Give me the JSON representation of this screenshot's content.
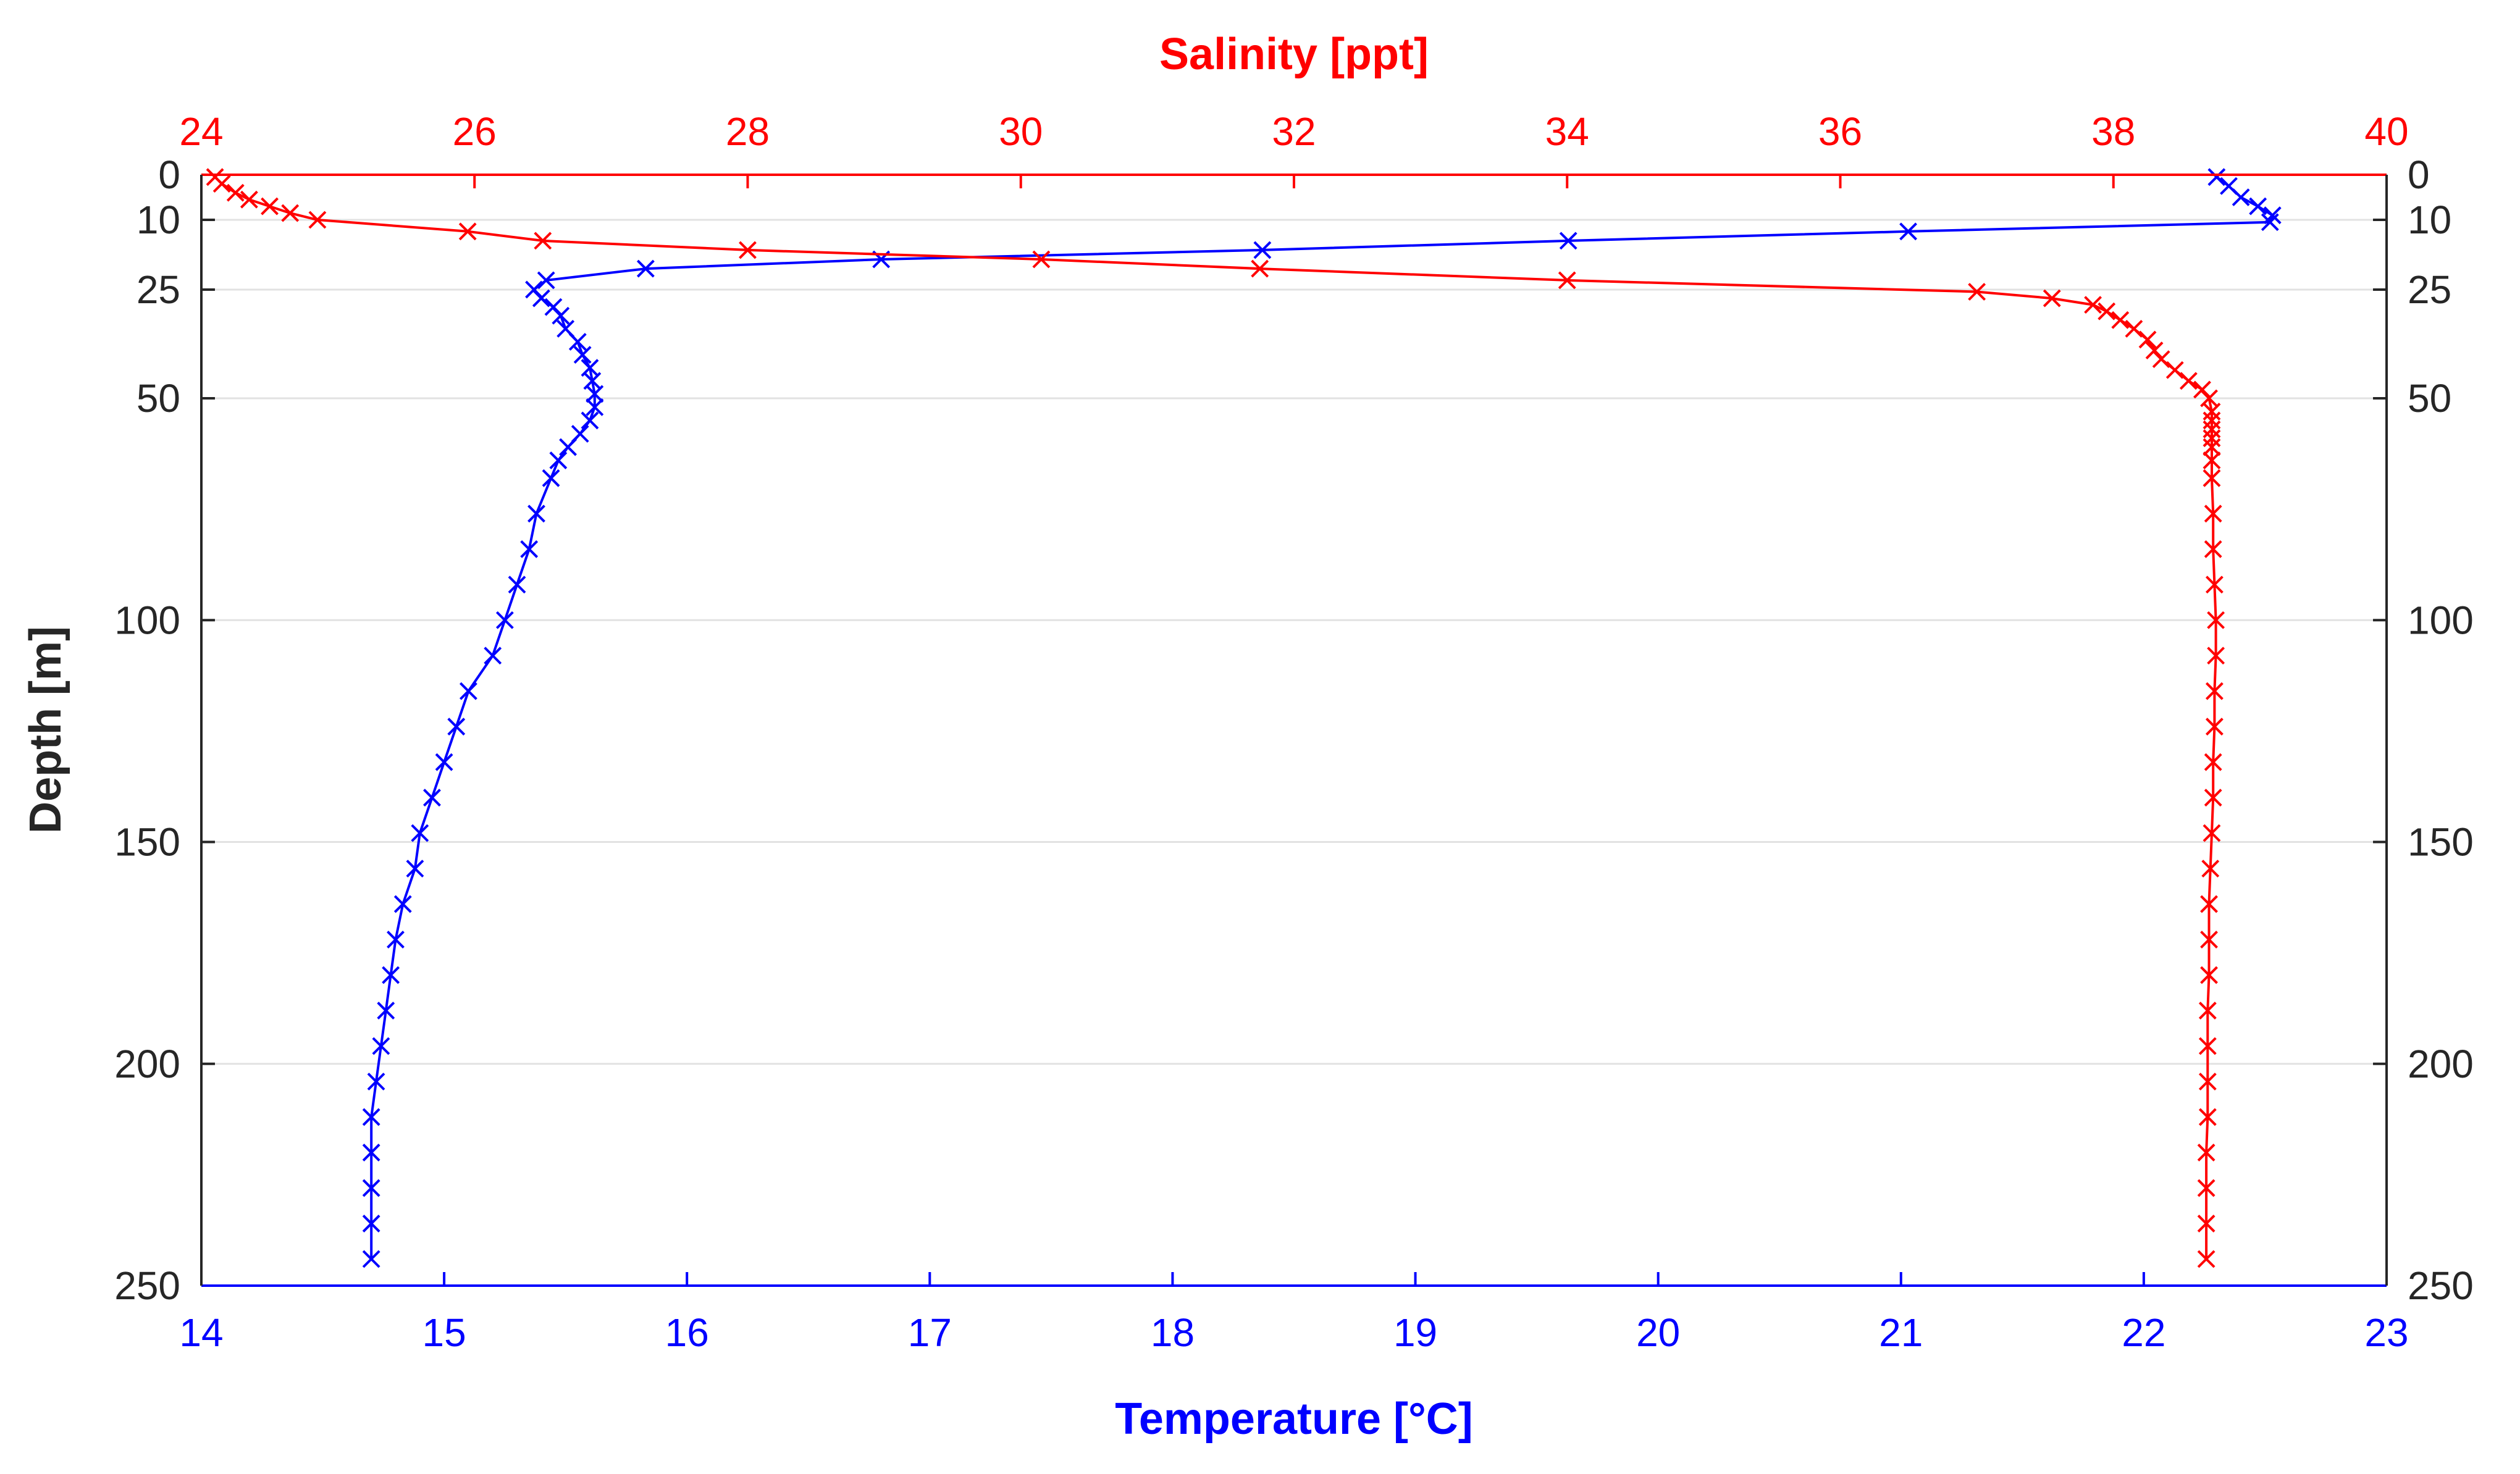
{
  "chart_data": {
    "type": "line",
    "top_axis": {
      "title": "Salinity [ppt]",
      "range": [
        24,
        40
      ],
      "ticks": [
        "24",
        "26",
        "28",
        "30",
        "32",
        "34",
        "36",
        "38",
        "40"
      ],
      "color": "#ff0000"
    },
    "bottom_axis": {
      "title": "Temperature [°C]",
      "range": [
        14,
        23
      ],
      "ticks": [
        "14",
        "15",
        "16",
        "17",
        "18",
        "19",
        "20",
        "21",
        "22",
        "23"
      ],
      "color": "#0000ff"
    },
    "left_axis": {
      "title": "Depth [m]",
      "range": [
        0,
        250
      ],
      "ticks": [
        "0",
        "10",
        "25",
        "50",
        "100",
        "150",
        "200",
        "250"
      ],
      "tick_values": [
        0,
        10,
        25,
        50,
        100,
        150,
        200,
        250
      ],
      "color": "#262626"
    },
    "right_axis": {
      "ticks": [
        "0",
        "10",
        "25",
        "50",
        "100",
        "150",
        "200",
        "250"
      ],
      "tick_values": [
        0,
        10,
        25,
        50,
        100,
        150,
        200,
        250
      ]
    },
    "grid": true,
    "series": [
      {
        "name": "Temperature",
        "axis": "bottom",
        "color": "#0000ff",
        "marker": "x",
        "points": [
          [
            22.3,
            0.5
          ],
          [
            22.35,
            2.5
          ],
          [
            22.4,
            5
          ],
          [
            22.47,
            7
          ],
          [
            22.53,
            9
          ],
          [
            22.52,
            10.5
          ],
          [
            21.03,
            12.5
          ],
          [
            19.63,
            14.5
          ],
          [
            18.37,
            16.5
          ],
          [
            16.8,
            18.5
          ],
          [
            15.83,
            20.5
          ],
          [
            15.42,
            23
          ],
          [
            15.37,
            25
          ],
          [
            15.4,
            27
          ],
          [
            15.45,
            29
          ],
          [
            15.48,
            31
          ],
          [
            15.5,
            34
          ],
          [
            15.55,
            37
          ],
          [
            15.57,
            40
          ],
          [
            15.6,
            43
          ],
          [
            15.61,
            46
          ],
          [
            15.62,
            49
          ],
          [
            15.62,
            52
          ],
          [
            15.6,
            55
          ],
          [
            15.56,
            58
          ],
          [
            15.51,
            61
          ],
          [
            15.47,
            64
          ],
          [
            15.44,
            68
          ],
          [
            15.38,
            76
          ],
          [
            15.35,
            84
          ],
          [
            15.3,
            92
          ],
          [
            15.25,
            100
          ],
          [
            15.2,
            108
          ],
          [
            15.1,
            116
          ],
          [
            15.05,
            124
          ],
          [
            15.0,
            132
          ],
          [
            14.95,
            140
          ],
          [
            14.9,
            148
          ],
          [
            14.88,
            156
          ],
          [
            14.83,
            164
          ],
          [
            14.8,
            172
          ],
          [
            14.78,
            180
          ],
          [
            14.76,
            188
          ],
          [
            14.74,
            196
          ],
          [
            14.72,
            204
          ],
          [
            14.7,
            212
          ],
          [
            14.7,
            220
          ],
          [
            14.7,
            228
          ],
          [
            14.7,
            236
          ],
          [
            14.7,
            244
          ]
        ]
      },
      {
        "name": "Salinity",
        "axis": "top",
        "color": "#ff0000",
        "marker": "x",
        "points": [
          [
            24.1,
            0.5
          ],
          [
            24.15,
            2
          ],
          [
            24.25,
            4
          ],
          [
            24.35,
            5.5
          ],
          [
            24.5,
            7
          ],
          [
            24.65,
            8.5
          ],
          [
            24.85,
            10
          ],
          [
            25.95,
            12.5
          ],
          [
            26.5,
            14.5
          ],
          [
            28.0,
            16.5
          ],
          [
            30.15,
            18.5
          ],
          [
            31.75,
            20.5
          ],
          [
            34.0,
            23
          ],
          [
            37.0,
            25.5
          ],
          [
            37.55,
            27
          ],
          [
            37.85,
            28.5
          ],
          [
            37.95,
            30
          ],
          [
            38.05,
            32
          ],
          [
            38.15,
            34
          ],
          [
            38.25,
            36.5
          ],
          [
            38.3,
            39
          ],
          [
            38.35,
            41
          ],
          [
            38.45,
            43.5
          ],
          [
            38.55,
            46
          ],
          [
            38.65,
            48
          ],
          [
            38.7,
            50
          ],
          [
            38.72,
            53
          ],
          [
            38.72,
            55
          ],
          [
            38.72,
            57
          ],
          [
            38.72,
            59
          ],
          [
            38.72,
            61
          ],
          [
            38.72,
            64
          ],
          [
            38.72,
            68
          ],
          [
            38.73,
            76
          ],
          [
            38.73,
            84
          ],
          [
            38.74,
            92
          ],
          [
            38.75,
            100
          ],
          [
            38.75,
            108
          ],
          [
            38.74,
            116
          ],
          [
            38.74,
            124
          ],
          [
            38.73,
            132
          ],
          [
            38.73,
            140
          ],
          [
            38.72,
            148
          ],
          [
            38.71,
            156
          ],
          [
            38.7,
            164
          ],
          [
            38.7,
            172
          ],
          [
            38.7,
            180
          ],
          [
            38.69,
            188
          ],
          [
            38.69,
            196
          ],
          [
            38.69,
            204
          ],
          [
            38.69,
            212
          ],
          [
            38.68,
            220
          ],
          [
            38.68,
            228
          ],
          [
            38.68,
            236
          ],
          [
            38.68,
            244
          ]
        ]
      }
    ]
  }
}
